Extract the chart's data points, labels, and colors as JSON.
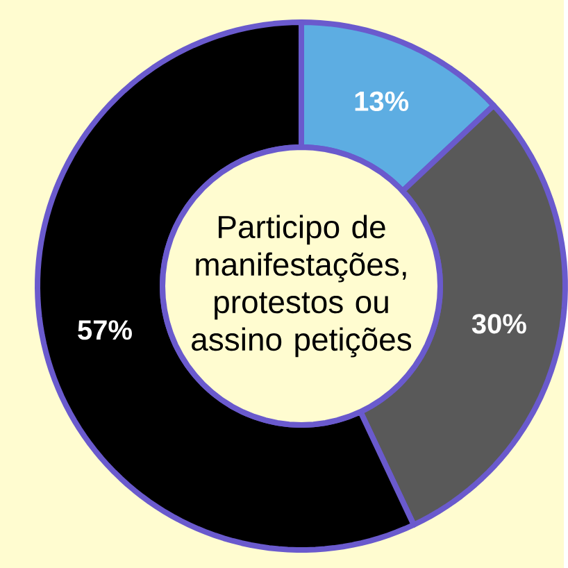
{
  "chart_data": {
    "type": "donut",
    "title": "Participo de manifestações, protestos ou assino petições",
    "categories": [
      null,
      null,
      null
    ],
    "values": [
      13,
      30,
      57
    ],
    "colors": [
      "#5dade2",
      "#595959",
      "#000000"
    ],
    "value_labels": [
      "13%",
      "30%",
      "57%"
    ]
  }
}
